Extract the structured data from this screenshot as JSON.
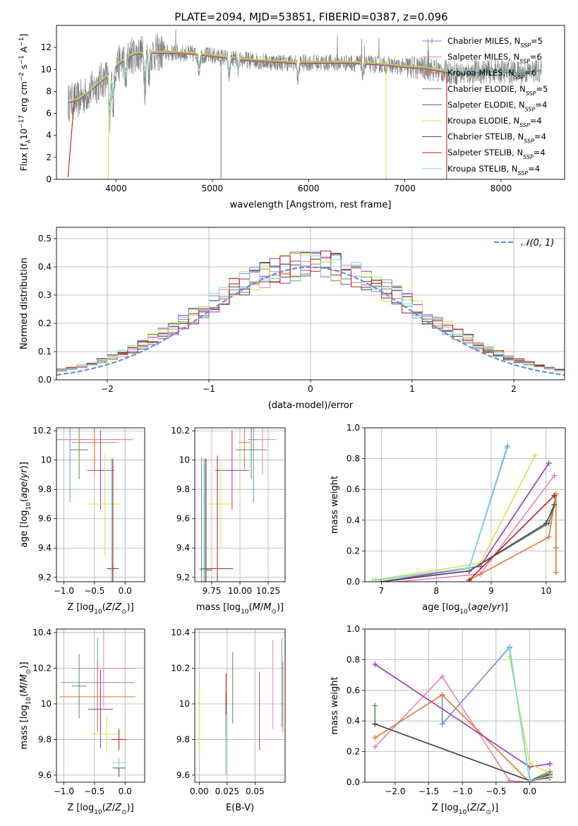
{
  "figure_title": "PLATE=2094, MJD=53851, FIBERID=0387, z=0.096",
  "series": [
    {
      "name": "Chabrier MILES, N$_{SSP}$=5",
      "legend_main": "Chabrier MILES, N",
      "legend_sub": "SSP",
      "legend_tail": "=5",
      "color": "#6a8fd8"
    },
    {
      "name": "Salpeter MILES, N$_{SSP}$=6",
      "legend_main": "Salpeter MILES, N",
      "legend_sub": "SSP",
      "legend_tail": "=6",
      "color": "#e882b8"
    },
    {
      "name": "Kroupa MILES, N$_{SSP}$=6",
      "legend_main": "Kroupa MILES, N",
      "legend_sub": "SSP",
      "legend_tail": "=6",
      "color": "#e07a2e"
    },
    {
      "name": "Chabrier ELODIE, N$_{SSP}$=5",
      "legend_main": "Chabrier ELODIE, N",
      "legend_sub": "SSP",
      "legend_tail": "=5",
      "color": "#5a8a5a"
    },
    {
      "name": "Salpeter ELODIE, N$_{SSP}$=4",
      "legend_main": "Salpeter ELODIE, N",
      "legend_sub": "SSP",
      "legend_tail": "=4",
      "color": "#9b35b5"
    },
    {
      "name": "Kroupa ELODIE, N$_{SSP}$=4",
      "legend_main": "Kroupa ELODIE, N",
      "legend_sub": "SSP",
      "legend_tail": "=4",
      "color": "#cce84a"
    },
    {
      "name": "Chabrier STELIB, N$_{SSP}$=4",
      "legend_main": "Chabrier STELIB, N",
      "legend_sub": "SSP",
      "legend_tail": "=4",
      "color": "#4a4a4a"
    },
    {
      "name": "Salpeter STELIB, N$_{SSP}$=4",
      "legend_main": "Salpeter STELIB, N",
      "legend_sub": "SSP",
      "legend_tail": "=4",
      "color": "#b81c1c"
    },
    {
      "name": "Kroupa STELIB, N$_{SSP}$=4",
      "legend_main": "Kroupa STELIB, N",
      "legend_sub": "SSP",
      "legend_tail": "=4",
      "color": "#7dd8e0"
    }
  ],
  "data_color": "#808080",
  "chart_data": [
    {
      "id": "spectrum",
      "type": "line",
      "xlabel": "wavelength [Angstrom, rest frame]",
      "ylabel": "Flux [f$_\\lambda$10$^{-17}$ erg cm$^{-2}$ s$^{-1}$ A$^{-1}$]",
      "ylabel_parts": {
        "a": "Flux [f",
        "a_sub": "λ",
        "b": "10",
        "b_sup": "−17",
        "c": " erg cm",
        "c_sup": "−2",
        "d": " s",
        "d_sup": "−1",
        "e": " A",
        "e_sup": "−1",
        "f": "]"
      },
      "xlim": [
        3380,
        8660
      ],
      "ylim": [
        0,
        14
      ],
      "xticks": [
        4000,
        5000,
        6000,
        7000,
        8000
      ],
      "yticks": [
        0,
        2,
        4,
        6,
        8,
        10,
        12
      ],
      "grid": false,
      "legend_position": "upper right",
      "data_range": [
        3500,
        8420
      ],
      "envelope": {
        "x": [
          3500,
          3600,
          3700,
          3800,
          3900,
          4000,
          4100,
          4200,
          4400,
          4600,
          4800,
          5000,
          5200,
          5400,
          5600,
          5800,
          6000,
          6200,
          6400,
          6600,
          6800,
          7000,
          7200,
          7400,
          7600,
          7800,
          8000,
          8200,
          8400
        ],
        "y": [
          7.0,
          7.2,
          7.8,
          8.6,
          9.3,
          10.3,
          11.0,
          11.4,
          11.5,
          11.5,
          11.4,
          11.2,
          11.0,
          10.8,
          10.7,
          10.6,
          10.6,
          10.6,
          10.6,
          10.5,
          10.4,
          10.2,
          10.1,
          9.8,
          9.6,
          9.8,
          9.8,
          9.7,
          9.9
        ]
      },
      "absorption_features": [
        {
          "x": 3934,
          "depth": 4.5
        },
        {
          "x": 3969,
          "depth": 3.5
        },
        {
          "x": 4101,
          "depth": 2.5
        },
        {
          "x": 4300,
          "depth": 3.0
        },
        {
          "x": 4340,
          "depth": 2.0
        },
        {
          "x": 4861,
          "depth": 1.5
        },
        {
          "x": 5175,
          "depth": 1.8
        },
        {
          "x": 5270,
          "depth": 1.0
        },
        {
          "x": 5890,
          "depth": 1.6
        },
        {
          "x": 6563,
          "depth": 1.2
        }
      ],
      "emission_spikes": [
        {
          "x": 4620,
          "height": 2.0
        },
        {
          "x": 6300,
          "height": 1.8
        },
        {
          "x": 6550,
          "height": 3.5
        },
        {
          "x": 6580,
          "height": 2.2
        },
        {
          "x": 6730,
          "height": 2.5
        },
        {
          "x": 7240,
          "height": 3.0
        },
        {
          "x": 7250,
          "height": 2.2
        }
      ],
      "drop_lines": [
        {
          "x": 3920,
          "color": "#cce84a"
        },
        {
          "x": 5090,
          "color": "#808080"
        },
        {
          "x": 6805,
          "color": "#cce84a"
        },
        {
          "x": 7435,
          "color": "#b81c1c"
        }
      ]
    },
    {
      "id": "residuals",
      "type": "line",
      "xlabel": "(data-model)/error",
      "ylabel": "Normed distribution",
      "xlim": [
        -2.5,
        2.5
      ],
      "ylim": [
        0,
        0.54
      ],
      "xticks": [
        -2,
        -1,
        0,
        1,
        2
      ],
      "xtick_labels": [
        "−2",
        "−1",
        "0",
        "1",
        "2"
      ],
      "yticks": [
        0.0,
        0.1,
        0.2,
        0.3,
        0.4,
        0.5
      ],
      "grid": true,
      "legend_position": "upper right",
      "gaussian_label": "$\\mathcal{N}(0,1)$",
      "gaussian_legend_text": "𝒩(0, 1)",
      "gaussian_color": "#6a8fd8",
      "bin_width": 0.1
    },
    {
      "id": "age_vs_z",
      "type": "scatter",
      "xlabel": "Z [log$_{10}$(Z/Z$_\\odot$)]",
      "ylabel": "age  [log$_{10}$(age/yr)]",
      "xlim": [
        -1.12,
        0.32
      ],
      "ylim": [
        9.17,
        10.22
      ],
      "xticks": [
        -1.0,
        -0.5,
        0.0
      ],
      "xtick_labels": [
        "−1.0",
        "−0.5",
        "0.0"
      ],
      "yticks": [
        9.2,
        9.4,
        9.6,
        9.8,
        10.0,
        10.2
      ],
      "grid": true,
      "points": [
        {
          "series": 0,
          "x": -0.9,
          "y": 10.14,
          "xerr": 1.0,
          "yerr": 0.43
        },
        {
          "series": 0,
          "x": -0.2,
          "y": 9.26,
          "xerr": 0.05,
          "yerr": 0.05
        },
        {
          "series": 1,
          "x": -0.5,
          "y": 10.14,
          "xerr": 0.63,
          "yerr": 0.24
        },
        {
          "series": 2,
          "x": -0.5,
          "y": 10.12,
          "xerr": 0.37,
          "yerr": 0.18
        },
        {
          "series": 2,
          "x": -0.2,
          "y": 9.26,
          "xerr": 0.03,
          "yerr": 0.04
        },
        {
          "series": 3,
          "x": -0.75,
          "y": 10.07,
          "xerr": 0.15,
          "yerr": 0.2
        },
        {
          "series": 3,
          "x": -0.22,
          "y": 9.25,
          "xerr": 0.03,
          "yerr": 0.76
        },
        {
          "series": 4,
          "x": -0.4,
          "y": 9.93,
          "xerr": 0.22,
          "yerr": 0.27
        },
        {
          "series": 5,
          "x": -0.33,
          "y": 9.7,
          "xerr": 0.26,
          "yerr": 0.35
        },
        {
          "series": 6,
          "x": -0.2,
          "y": 9.25,
          "xerr": 0.02,
          "yerr": 0.76
        },
        {
          "series": 7,
          "x": -0.2,
          "y": 9.26,
          "xerr": 0.1,
          "yerr": 0.73
        },
        {
          "series": 8,
          "x": -0.22,
          "y": 9.25,
          "xerr": 0.03,
          "yerr": 0.75
        }
      ]
    },
    {
      "id": "age_vs_mass",
      "type": "scatter",
      "xlabel": "mass [log$_{10}$(M/M$_\\odot$)]",
      "ylabel": "",
      "xlim": [
        9.6,
        10.4
      ],
      "ylim": [
        9.17,
        10.22
      ],
      "xticks": [
        9.75,
        10.0,
        10.25
      ],
      "xtick_labels": [
        "9.75",
        "10.00",
        "10.25"
      ],
      "yticks": [
        9.2,
        9.4,
        9.6,
        9.8,
        10.0,
        10.2
      ],
      "grid": true,
      "points": [
        {
          "series": 0,
          "x": 10.12,
          "y": 10.14,
          "xerr": 0.05,
          "yerr": 0.43
        },
        {
          "series": 0,
          "x": 9.66,
          "y": 9.26,
          "xerr": 0.02,
          "yerr": 0.76
        },
        {
          "series": 1,
          "x": 10.2,
          "y": 10.14,
          "xerr": 0.12,
          "yerr": 0.24
        },
        {
          "series": 2,
          "x": 10.04,
          "y": 10.12,
          "xerr": 0.05,
          "yerr": 0.18
        },
        {
          "series": 3,
          "x": 10.1,
          "y": 10.07,
          "xerr": 0.14,
          "yerr": 0.2
        },
        {
          "series": 3,
          "x": 9.69,
          "y": 9.25,
          "xerr": 0.03,
          "yerr": 0.76
        },
        {
          "series": 4,
          "x": 9.93,
          "y": 9.93,
          "xerr": 0.15,
          "yerr": 0.27
        },
        {
          "series": 5,
          "x": 9.83,
          "y": 9.7,
          "xerr": 0.13,
          "yerr": 0.3
        },
        {
          "series": 6,
          "x": 9.7,
          "y": 9.25,
          "xerr": 0.05,
          "yerr": 0.76
        },
        {
          "series": 7,
          "x": 9.8,
          "y": 9.26,
          "xerr": 0.14,
          "yerr": 0.77
        },
        {
          "series": 8,
          "x": 9.68,
          "y": 9.25,
          "xerr": 0.02,
          "yerr": 0.76
        }
      ]
    },
    {
      "id": "massweight_vs_age",
      "type": "line",
      "xlabel": "age  [log$_{10}$(age/yr)]",
      "ylabel": "mass weight",
      "xlim": [
        6.7,
        10.35
      ],
      "ylim": [
        0,
        1
      ],
      "xticks": [
        7,
        8,
        9,
        10
      ],
      "yticks": [
        0.0,
        0.2,
        0.4,
        0.6,
        0.8,
        1.0
      ],
      "grid": true,
      "series_lines": [
        {
          "series": 0,
          "x": [
            6.9,
            8.6,
            9.3
          ],
          "y": [
            0.01,
            0.09,
            0.88
          ]
        },
        {
          "series": 1,
          "x": [
            7.3,
            8.8,
            10.15
          ],
          "y": [
            0.0,
            0.05,
            0.69
          ]
        },
        {
          "series": 2,
          "x": [
            8.6,
            10.05,
            10.18,
            10.18,
            10.18
          ],
          "y": [
            0.01,
            0.29,
            0.57,
            0.22,
            0.06
          ]
        },
        {
          "series": 3,
          "x": [
            7.0,
            8.6,
            10.05,
            10.15
          ],
          "y": [
            0.0,
            0.07,
            0.38,
            0.5
          ]
        },
        {
          "series": 4,
          "x": [
            7.0,
            8.8,
            10.05
          ],
          "y": [
            0.0,
            0.1,
            0.77
          ]
        },
        {
          "series": 5,
          "x": [
            6.85,
            8.8,
            9.8
          ],
          "y": [
            0.01,
            0.12,
            0.82
          ]
        },
        {
          "series": 6,
          "x": [
            7.0,
            8.6,
            10.0,
            10.15
          ],
          "y": [
            0.0,
            0.07,
            0.38,
            0.5
          ]
        },
        {
          "series": 7,
          "x": [
            8.6,
            10.15
          ],
          "y": [
            0.01,
            0.56
          ]
        },
        {
          "series": 8,
          "x": [
            6.9,
            8.6,
            9.28
          ],
          "y": [
            0.01,
            0.09,
            0.87
          ]
        }
      ]
    },
    {
      "id": "mass_vs_z",
      "type": "scatter",
      "xlabel": "Z [log$_{10}$(Z/Z$_\\odot$)]",
      "ylabel": "mass [log$_{10}$(M/M$_\\odot$)]",
      "xlim": [
        -1.12,
        0.32
      ],
      "ylim": [
        9.56,
        10.42
      ],
      "xticks": [
        -1.0,
        -0.5,
        0.0
      ],
      "xtick_labels": [
        "−1.0",
        "−0.5",
        "0.0"
      ],
      "yticks": [
        9.6,
        9.8,
        10.0,
        10.2,
        10.4
      ],
      "grid": true,
      "points": [
        {
          "series": 0,
          "x": -0.45,
          "y": 10.12,
          "xerr": 0.6,
          "yerr": 0.25
        },
        {
          "series": 1,
          "x": -0.35,
          "y": 10.2,
          "xerr": 0.52,
          "yerr": 0.22
        },
        {
          "series": 2,
          "x": -0.45,
          "y": 10.04,
          "xerr": 0.62,
          "yerr": 0.2
        },
        {
          "series": 3,
          "x": -0.75,
          "y": 10.1,
          "xerr": 0.12,
          "yerr": 0.18
        },
        {
          "series": 4,
          "x": -0.4,
          "y": 9.97,
          "xerr": 0.2,
          "yerr": 0.22
        },
        {
          "series": 5,
          "x": -0.3,
          "y": 9.83,
          "xerr": 0.23,
          "yerr": 0.1
        },
        {
          "series": 6,
          "x": -0.1,
          "y": 9.64,
          "xerr": 0.1,
          "yerr": 0.05
        },
        {
          "series": 7,
          "x": -0.1,
          "y": 9.8,
          "xerr": 0.12,
          "yerr": 0.06
        },
        {
          "series": 8,
          "x": -0.1,
          "y": 9.67,
          "xerr": 0.1,
          "yerr": 0.03
        }
      ]
    },
    {
      "id": "mass_vs_ebv",
      "type": "scatter",
      "xlabel": "E(B-V)",
      "ylabel": "",
      "xlim": [
        -0.004,
        0.077
      ],
      "ylim": [
        9.56,
        10.42
      ],
      "xticks": [
        0.0,
        0.025,
        0.05
      ],
      "xtick_labels": [
        "0.00",
        "0.025",
        "0.05"
      ],
      "yticks": [
        9.6,
        9.8,
        10.0,
        10.2,
        10.4
      ],
      "grid": true,
      "points": [
        {
          "series": 0,
          "x": 0.074,
          "y": 10.12,
          "xerr": 0,
          "yerr": 0.25
        },
        {
          "series": 1,
          "x": 0.066,
          "y": 10.11,
          "xerr": 0,
          "yerr": 0.25
        },
        {
          "series": 2,
          "x": 0.075,
          "y": 10.04,
          "xerr": 0,
          "yerr": 0.2
        },
        {
          "series": 3,
          "x": 0.03,
          "y": 10.09,
          "xerr": 0,
          "yerr": 0.2
        },
        {
          "series": 4,
          "x": 0.054,
          "y": 9.96,
          "xerr": 0,
          "yerr": 0.22
        },
        {
          "series": 5,
          "x": 0.0,
          "y": 9.89,
          "xerr": 0,
          "yerr": 0.2
        },
        {
          "series": 6,
          "x": 0.024,
          "y": 9.83,
          "xerr": 0,
          "yerr": 0.23
        },
        {
          "series": 7,
          "x": 0.024,
          "y": 10.0,
          "xerr": 0,
          "yerr": 0.17
        },
        {
          "series": 8,
          "x": 0.024,
          "y": 9.77,
          "xerr": 0,
          "yerr": 0.17
        }
      ]
    },
    {
      "id": "massweight_vs_z",
      "type": "line",
      "xlabel": "Z [log$_{10}$(Z/Z$_\\odot$)]",
      "ylabel": "mass weight",
      "xlim": [
        -2.45,
        0.53
      ],
      "ylim": [
        0,
        1
      ],
      "xticks": [
        -2.0,
        -1.5,
        -1.0,
        -0.5,
        0.0
      ],
      "xtick_labels": [
        "−2.0",
        "−1.5",
        "−1.0",
        "−0.5",
        "0.0"
      ],
      "yticks": [
        0.0,
        0.2,
        0.4,
        0.6,
        0.8,
        1.0
      ],
      "grid": true,
      "series_lines": [
        {
          "series": 0,
          "x": [
            -1.3,
            -1.3,
            -0.3,
            0.0,
            0.3
          ],
          "y": [
            0.57,
            0.38,
            0.88,
            0.01,
            0.05
          ]
        },
        {
          "series": 1,
          "x": [
            -2.3,
            -1.3,
            -0.3,
            0.0
          ],
          "y": [
            0.23,
            0.69,
            0.01,
            0.0
          ]
        },
        {
          "series": 2,
          "x": [
            -2.3,
            -1.3,
            0.0,
            0.3
          ],
          "y": [
            0.29,
            0.57,
            0.0,
            0.06
          ]
        },
        {
          "series": 3,
          "x": [
            -2.3,
            -2.3,
            0.0,
            0.3
          ],
          "y": [
            0.5,
            0.38,
            0.01,
            0.07
          ]
        },
        {
          "series": 4,
          "x": [
            -2.3,
            0.0,
            0.3
          ],
          "y": [
            0.77,
            0.1,
            0.12
          ]
        },
        {
          "series": 5,
          "x": [
            -0.3,
            0.0,
            0.3
          ],
          "y": [
            0.82,
            0.12,
            0.06
          ]
        },
        {
          "series": 6,
          "x": [
            -2.3,
            0.0,
            0.3
          ],
          "y": [
            0.38,
            0.01,
            0.05
          ]
        },
        {
          "series": 7,
          "x": [
            0.0,
            0.3
          ],
          "y": [
            0.01,
            0.03
          ]
        },
        {
          "series": 8,
          "x": [
            -0.3,
            0.0,
            0.3
          ],
          "y": [
            0.87,
            0.01,
            0.04
          ]
        }
      ]
    }
  ]
}
